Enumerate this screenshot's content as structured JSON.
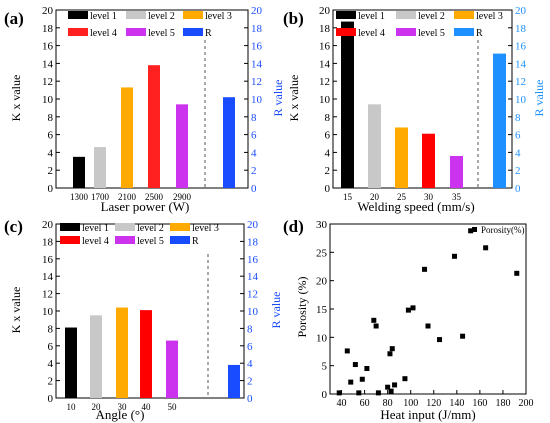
{
  "chart_data": [
    {
      "panel_label": "(a)",
      "type": "bar",
      "categories": [
        "1300",
        "1700",
        "2100",
        "2500",
        "2900"
      ],
      "values": [
        3.5,
        4.6,
        11.3,
        13.8,
        9.4
      ],
      "r_value": 10.2,
      "xlabel": "Laser power (W)",
      "ylabel": "K x value",
      "ylabel_right": "R value",
      "ylim": [
        0,
        20
      ],
      "yticks": [
        0,
        2,
        4,
        6,
        8,
        10,
        12,
        14,
        16,
        18,
        20
      ],
      "legend": [
        "level 1",
        "level 2",
        "level 3",
        "level 4",
        "level 5",
        "R"
      ],
      "legend_placement": "top",
      "colors": [
        "#000000",
        "#c8c8c8",
        "#ffaa00",
        "#ff2020",
        "#cc33ee",
        "#1a4cff"
      ]
    },
    {
      "panel_label": "(b)",
      "type": "bar",
      "categories": [
        "15",
        "20",
        "25",
        "30",
        "35"
      ],
      "values": [
        18.7,
        9.4,
        6.8,
        6.1,
        3.6
      ],
      "r_value": 15.1,
      "xlabel": "Welding speed (mm/s)",
      "ylabel": "K x value",
      "ylabel_right": "R value",
      "ylim": [
        0,
        20
      ],
      "yticks": [
        0,
        2,
        4,
        6,
        8,
        10,
        12,
        14,
        16,
        18,
        20
      ],
      "legend": [
        "level 1",
        "level 2",
        "level 3",
        "level 4",
        "level 5",
        "R"
      ],
      "legend_placement": "top",
      "colors": [
        "#000000",
        "#c8c8c8",
        "#ffaa00",
        "#ff0000",
        "#cc33ee",
        "#1e90ff"
      ]
    },
    {
      "panel_label": "(c)",
      "type": "bar",
      "categories": [
        "10",
        "20",
        "30",
        "40",
        "50"
      ],
      "values": [
        8.1,
        9.5,
        10.4,
        10.1,
        6.6
      ],
      "r_value": 3.8,
      "xlabel": "Angle (°)",
      "ylabel": "K x value",
      "ylabel_right": "R value",
      "ylim": [
        0,
        20
      ],
      "yticks": [
        0,
        2,
        4,
        6,
        8,
        10,
        12,
        14,
        16,
        18,
        20
      ],
      "legend": [
        "level 1",
        "level 2",
        "level 3",
        "level 4",
        "level 5",
        "R"
      ],
      "legend_placement": "top",
      "colors": [
        "#000000",
        "#c8c8c8",
        "#ffaa00",
        "#ff0000",
        "#cc33ee",
        "#1a4cff"
      ]
    },
    {
      "panel_label": "(d)",
      "type": "scatter",
      "xlabel": "Heat input (J/mm)",
      "ylabel": "Porosity (%)",
      "xlim": [
        30,
        200
      ],
      "ylim": [
        0,
        30
      ],
      "xticks": [
        40,
        60,
        80,
        100,
        120,
        140,
        160,
        180,
        200
      ],
      "yticks": [
        0,
        5,
        10,
        15,
        20,
        25,
        30
      ],
      "legend": [
        "Porosity(%)"
      ],
      "legend_placement": "top-right",
      "marker_color": "#000000",
      "points": [
        [
          38,
          0.2
        ],
        [
          45,
          7.6
        ],
        [
          48,
          2.1
        ],
        [
          52,
          5.2
        ],
        [
          55,
          0.2
        ],
        [
          58,
          2.6
        ],
        [
          62,
          4.5
        ],
        [
          68,
          13.0
        ],
        [
          70,
          12.0
        ],
        [
          72,
          0.2
        ],
        [
          80,
          1.2
        ],
        [
          82,
          7.1
        ],
        [
          83,
          0.5
        ],
        [
          84,
          8.0
        ],
        [
          86,
          1.6
        ],
        [
          95,
          2.7
        ],
        [
          98,
          14.8
        ],
        [
          102,
          15.2
        ],
        [
          112,
          22.0
        ],
        [
          115,
          12.0
        ],
        [
          125,
          9.6
        ],
        [
          138,
          24.3
        ],
        [
          145,
          10.2
        ],
        [
          152,
          28.8
        ],
        [
          165,
          25.8
        ],
        [
          192,
          21.3
        ]
      ]
    }
  ]
}
